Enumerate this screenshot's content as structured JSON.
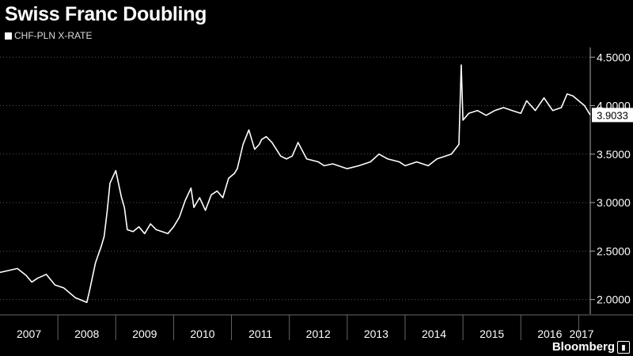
{
  "header": {
    "title": "Swiss Franc Doubling"
  },
  "legend": {
    "label": "CHF-PLN X-RATE"
  },
  "brand": {
    "name": "Bloomberg",
    "icon": "bloomberg-chart-icon"
  },
  "colors": {
    "background": "#000000",
    "line": "#ffffff",
    "grid": "#555555"
  },
  "chart_data": {
    "type": "line",
    "title": "Swiss Franc Doubling",
    "xlabel": "",
    "ylabel": "",
    "ylim": [
      1.85,
      4.6
    ],
    "yticks": [
      "2.0000",
      "2.5000",
      "3.0000",
      "3.5000",
      "4.0000",
      "4.5000"
    ],
    "ytick_values": [
      2.0,
      2.5,
      3.0,
      3.5,
      4.0,
      4.5
    ],
    "xlim": [
      2007.0,
      2017.2
    ],
    "xticks": [
      "2007",
      "2008",
      "2009",
      "2010",
      "2011",
      "2012",
      "2013",
      "2014",
      "2015",
      "2016",
      "2017"
    ],
    "grid": "horizontal dotted",
    "legend_position": "top-left",
    "last_value_label": "3.9033",
    "series": [
      {
        "name": "CHF-PLN X-RATE",
        "x": [
          2007.0,
          2007.15,
          2007.3,
          2007.45,
          2007.55,
          2007.65,
          2007.8,
          2007.95,
          2008.1,
          2008.3,
          2008.5,
          2008.55,
          2008.65,
          2008.75,
          2008.8,
          2008.85,
          2008.9,
          2009.0,
          2009.1,
          2009.15,
          2009.2,
          2009.3,
          2009.4,
          2009.5,
          2009.6,
          2009.7,
          2009.8,
          2009.9,
          2010.0,
          2010.1,
          2010.2,
          2010.3,
          2010.35,
          2010.45,
          2010.55,
          2010.65,
          2010.75,
          2010.85,
          2010.95,
          2011.05,
          2011.1,
          2011.2,
          2011.3,
          2011.4,
          2011.48,
          2011.52,
          2011.6,
          2011.7,
          2011.85,
          2011.95,
          2012.05,
          2012.15,
          2012.3,
          2012.5,
          2012.6,
          2012.75,
          2013.0,
          2013.2,
          2013.4,
          2013.55,
          2013.7,
          2013.9,
          2014.0,
          2014.2,
          2014.4,
          2014.55,
          2014.7,
          2014.8,
          2014.93,
          2014.97,
          2015.0,
          2015.1,
          2015.25,
          2015.4,
          2015.55,
          2015.7,
          2015.85,
          2016.0,
          2016.1,
          2016.25,
          2016.4,
          2016.55,
          2016.7,
          2016.8,
          2016.9,
          2017.0,
          2017.1,
          2017.2
        ],
        "values": [
          2.28,
          2.3,
          2.32,
          2.25,
          2.18,
          2.22,
          2.26,
          2.15,
          2.12,
          2.02,
          1.97,
          2.1,
          2.38,
          2.55,
          2.65,
          2.9,
          3.2,
          3.33,
          3.05,
          2.95,
          2.72,
          2.7,
          2.75,
          2.68,
          2.78,
          2.72,
          2.7,
          2.68,
          2.75,
          2.85,
          3.02,
          3.15,
          2.95,
          3.05,
          2.92,
          3.08,
          3.12,
          3.05,
          3.25,
          3.3,
          3.35,
          3.6,
          3.75,
          3.55,
          3.6,
          3.65,
          3.68,
          3.62,
          3.48,
          3.45,
          3.48,
          3.62,
          3.45,
          3.42,
          3.38,
          3.4,
          3.35,
          3.38,
          3.42,
          3.5,
          3.45,
          3.42,
          3.38,
          3.42,
          3.38,
          3.45,
          3.48,
          3.5,
          3.6,
          4.42,
          3.85,
          3.92,
          3.95,
          3.9,
          3.95,
          3.98,
          3.95,
          3.92,
          4.05,
          3.95,
          4.08,
          3.95,
          3.98,
          4.12,
          4.1,
          4.05,
          4.0,
          3.9033
        ]
      }
    ]
  }
}
